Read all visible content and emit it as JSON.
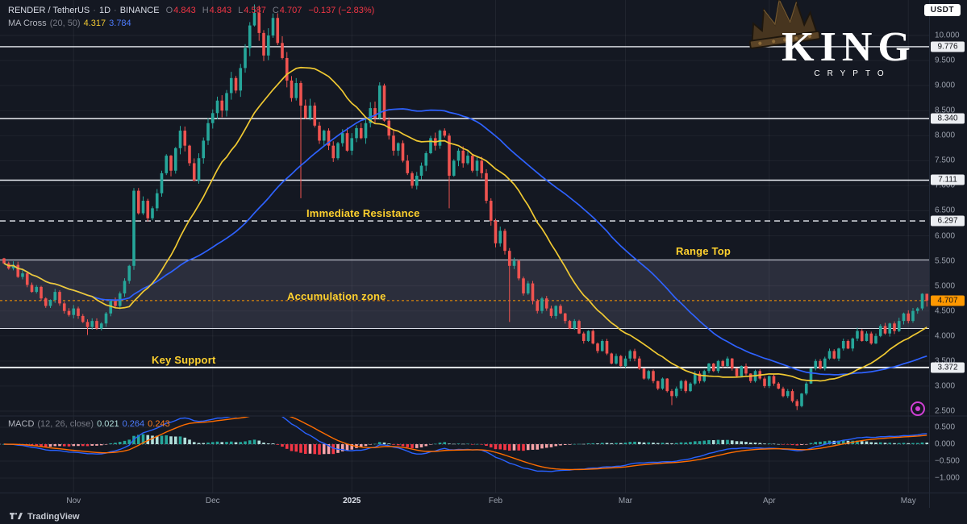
{
  "header": {
    "symbol": "RENDER / TetherUS",
    "sep": "·",
    "interval": "1D",
    "exchange": "BINANCE",
    "ohlc": {
      "o_label": "O",
      "o": "4.843",
      "h_label": "H",
      "h": "4.843",
      "l_label": "L",
      "l": "4.587",
      "c_label": "C",
      "c": "4.707",
      "change": "−0.137 (−2.83%)"
    },
    "ma_cross": {
      "label": "MA Cross",
      "params": "(20, 50)",
      "ma20": "4.317",
      "ma50": "3.784"
    }
  },
  "macd_legend": {
    "label": "MACD",
    "params": "(12, 26, close)",
    "hist": "0.021",
    "macd": "0.264",
    "signal": "0.243"
  },
  "annotations": {
    "immediate_resistance": "Immediate Resistance",
    "range_top": "Range Top",
    "accumulation_zone": "Accumulation zone",
    "key_support": "Key Support"
  },
  "logo": {
    "title": "KING",
    "subtitle": "CRYPTO"
  },
  "badge_usdt": "USDT",
  "watermark": {
    "brand": "TradingView"
  },
  "price_axis": {
    "ticks": [
      {
        "t": "10.000",
        "p": 10.0
      },
      {
        "t": "9.500",
        "p": 9.5
      },
      {
        "t": "9.000",
        "p": 9.0
      },
      {
        "t": "8.500",
        "p": 8.5
      },
      {
        "t": "8.000",
        "p": 8.0
      },
      {
        "t": "7.500",
        "p": 7.5
      },
      {
        "t": "7.000",
        "p": 7.0
      },
      {
        "t": "6.500",
        "p": 6.5
      },
      {
        "t": "6.000",
        "p": 6.0
      },
      {
        "t": "5.500",
        "p": 5.5
      },
      {
        "t": "5.000",
        "p": 5.0
      },
      {
        "t": "4.500",
        "p": 4.5
      },
      {
        "t": "4.000",
        "p": 4.0
      },
      {
        "t": "3.500",
        "p": 3.5
      },
      {
        "t": "3.000",
        "p": 3.0
      },
      {
        "t": "2.500",
        "p": 2.5
      }
    ],
    "level_badges": [
      {
        "t": "9.776",
        "p": 9.776
      },
      {
        "t": "8.340",
        "p": 8.34
      },
      {
        "t": "7.111",
        "p": 7.111
      },
      {
        "t": "6.297",
        "p": 6.297
      },
      {
        "t": "3.372",
        "p": 3.372
      }
    ],
    "last_price": {
      "t": "4.707",
      "p": 4.707
    },
    "macd_ticks": [
      {
        "t": "0.500",
        "v": 0.5
      },
      {
        "t": "0.000",
        "v": 0.0
      },
      {
        "t": "−0.500",
        "v": -0.5
      },
      {
        "t": "−1.000",
        "v": -1.0
      }
    ]
  },
  "time_axis": {
    "labels": [
      {
        "t": "Nov",
        "d": 15
      },
      {
        "t": "Dec",
        "d": 45
      },
      {
        "t": "2025",
        "d": 75,
        "major": true
      },
      {
        "t": "Feb",
        "d": 106
      },
      {
        "t": "Mar",
        "d": 134
      },
      {
        "t": "Apr",
        "d": 165
      },
      {
        "t": "May",
        "d": 195
      }
    ]
  },
  "chart_data": {
    "type": "candlestick",
    "title": "RENDER / TetherUS · 1D · BINANCE",
    "ylim": [
      2.2,
      10.65
    ],
    "x_months": [
      "Nov",
      "Dec",
      "2025",
      "Feb",
      "Mar",
      "Apr",
      "May"
    ],
    "first_open": 5.55,
    "closes": [
      5.45,
      5.35,
      5.42,
      5.18,
      5.25,
      5.02,
      4.88,
      4.98,
      4.75,
      4.6,
      4.72,
      4.88,
      4.65,
      4.5,
      4.42,
      4.55,
      4.4,
      4.28,
      4.18,
      4.3,
      4.15,
      4.25,
      4.45,
      4.7,
      4.6,
      4.85,
      5.1,
      5.4,
      6.9,
      6.45,
      6.7,
      6.35,
      6.55,
      6.85,
      7.25,
      7.6,
      7.3,
      7.75,
      8.1,
      7.8,
      7.45,
      7.1,
      7.55,
      7.9,
      8.25,
      8.45,
      8.7,
      8.5,
      8.85,
      9.15,
      8.9,
      9.35,
      9.75,
      10.2,
      10.45,
      10.05,
      9.6,
      10.0,
      10.35,
      9.85,
      9.55,
      9.1,
      8.75,
      9.05,
      8.6,
      8.35,
      8.6,
      8.2,
      7.9,
      8.1,
      7.8,
      7.55,
      7.85,
      8.05,
      7.7,
      7.95,
      8.15,
      7.95,
      8.25,
      8.55,
      8.35,
      9.0,
      8.3,
      8.0,
      7.7,
      7.85,
      7.5,
      7.25,
      7.0,
      7.2,
      7.4,
      7.65,
      7.95,
      7.8,
      8.1,
      8.0,
      7.2,
      7.5,
      7.7,
      7.45,
      7.6,
      7.3,
      7.5,
      7.25,
      6.7,
      6.3,
      5.85,
      6.1,
      5.7,
      5.4,
      5.5,
      5.15,
      4.85,
      5.05,
      4.7,
      4.5,
      4.75,
      4.55,
      4.4,
      4.6,
      4.45,
      4.3,
      4.15,
      4.3,
      4.05,
      3.9,
      4.1,
      3.85,
      3.7,
      3.9,
      3.65,
      3.45,
      3.6,
      3.4,
      3.55,
      3.7,
      3.55,
      3.35,
      3.15,
      3.3,
      3.1,
      2.95,
      3.15,
      2.9,
      2.8,
      2.95,
      3.1,
      2.9,
      3.05,
      3.25,
      3.1,
      3.3,
      3.45,
      3.3,
      3.5,
      3.4,
      3.55,
      3.35,
      3.2,
      3.4,
      3.25,
      3.1,
      3.3,
      3.15,
      3.0,
      3.2,
      3.05,
      2.95,
      2.8,
      2.9,
      2.7,
      2.6,
      2.85,
      3.05,
      3.35,
      3.5,
      3.35,
      3.55,
      3.7,
      3.55,
      3.75,
      3.9,
      3.75,
      3.95,
      4.1,
      3.9,
      4.05,
      3.85,
      4.0,
      4.2,
      4.05,
      4.25,
      4.1,
      4.3,
      4.45,
      4.3,
      4.5,
      4.55,
      4.843,
      4.707
    ],
    "last_candle": {
      "o": 4.843,
      "h": 4.843,
      "l": 4.587,
      "c": 4.707
    },
    "wick_overrides": {
      "18": {
        "low": 4.02
      },
      "54": {
        "high": 10.62
      },
      "64": {
        "low": 6.75
      },
      "96": {
        "low": 6.55
      },
      "109": {
        "low": 4.28
      },
      "144": {
        "low": 2.62
      },
      "171": {
        "low": 2.52
      }
    },
    "levels": {
      "resistances": [
        9.776,
        8.34,
        7.111
      ],
      "immediate_resistance": 6.297,
      "range_top": 5.52,
      "zone_bottom": 4.15,
      "key_support": 3.372,
      "last_price": 4.707
    },
    "zone": {
      "top": 5.52,
      "bottom": 4.15
    },
    "overlays": {
      "sma20": {
        "period": 20,
        "color": "#f0c932",
        "last": 4.317
      },
      "sma50": {
        "period": 50,
        "color": "#2e62ff",
        "last": 3.784
      }
    },
    "macd": {
      "fast": 12,
      "slow": 26,
      "signal": 9,
      "last_hist": 0.021,
      "last_macd": 0.264,
      "last_signal": 0.243,
      "colors": {
        "macd": "#2962ff",
        "signal": "#ff6d00",
        "hist_up": "#26a69a",
        "hist_up_fade": "#b2dfdb",
        "hist_dn": "#f23645",
        "hist_dn_fade": "#f5a3a8"
      }
    },
    "candle_colors": {
      "up": "#26a69a",
      "down": "#ef5350"
    }
  }
}
